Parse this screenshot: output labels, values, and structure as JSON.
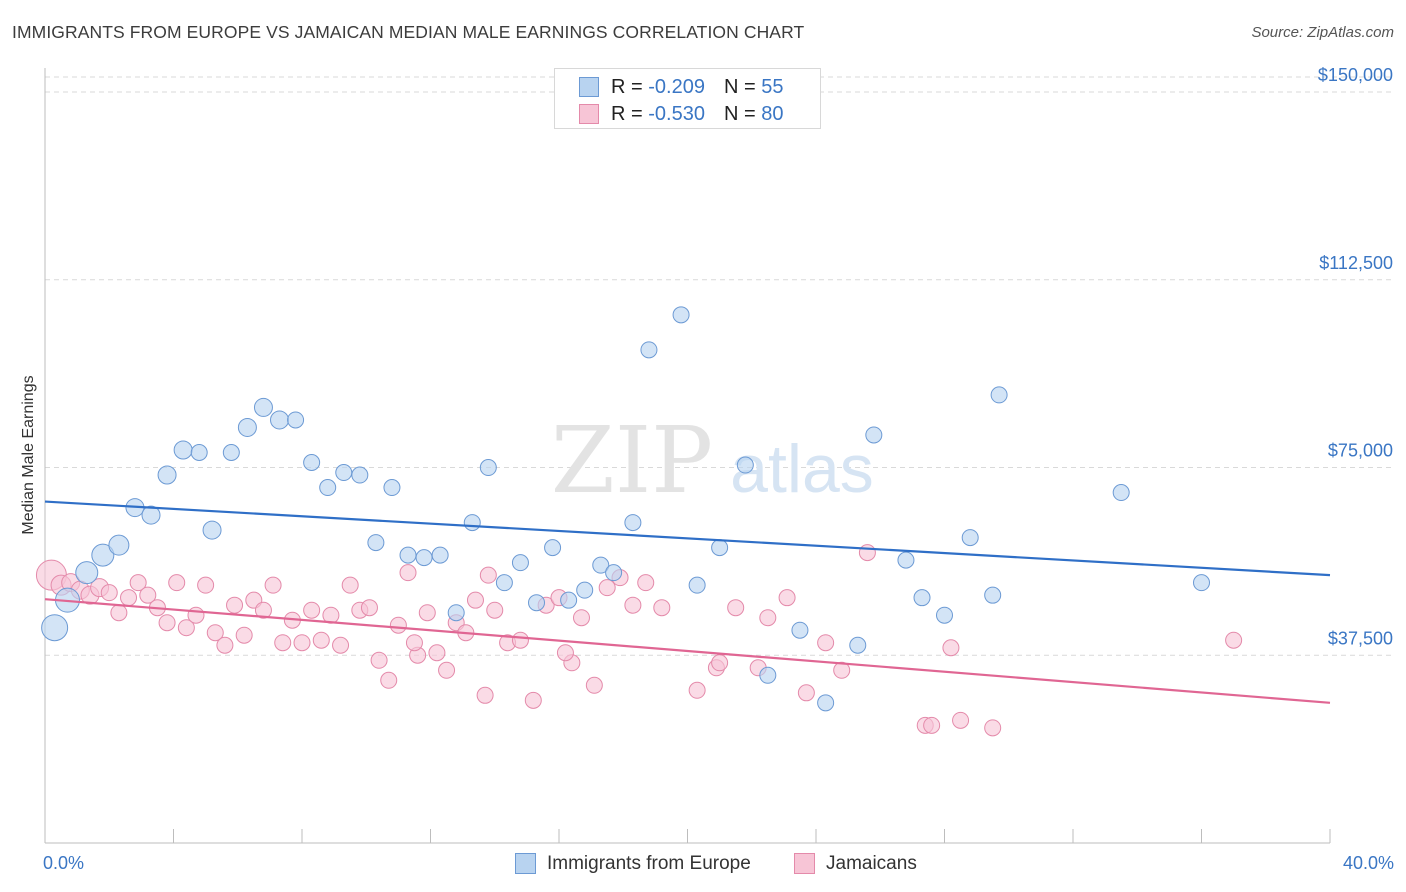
{
  "header": {
    "title": "IMMIGRANTS FROM EUROPE VS JAMAICAN MEDIAN MALE EARNINGS CORRELATION CHART",
    "source": "Source: ZipAtlas.com"
  },
  "watermark": {
    "zip": "ZIP",
    "atlas": "atlas"
  },
  "legend": {
    "rows": [
      {
        "r_label": "R = ",
        "r_value": "-0.209",
        "n_label": "N = ",
        "n_value": "55"
      },
      {
        "r_label": "R = ",
        "r_value": "-0.530",
        "n_label": "N = ",
        "n_value": "80"
      }
    ]
  },
  "bottom_legend": {
    "series1": "Immigrants from Europe",
    "series2": "Jamaicans"
  },
  "colors": {
    "series1_fill": "#b8d3f0",
    "series1_stroke": "#6c9ad4",
    "series1_line": "#2f6fc7",
    "series2_fill": "#f7c5d6",
    "series2_stroke": "#e48aaa",
    "series2_line": "#e06693",
    "axis_text": "#3a76c4",
    "grid": "#d9d9d9"
  },
  "chart_data": {
    "type": "scatter",
    "title": "IMMIGRANTS FROM EUROPE VS JAMAICAN MEDIAN MALE EARNINGS CORRELATION CHART",
    "xlabel": "",
    "ylabel": "Median Male Earnings",
    "xlim": [
      0,
      40
    ],
    "ylim": [
      0,
      154000
    ],
    "x_tick_labels": [
      "0.0%",
      "40.0%"
    ],
    "y_ticks": [
      {
        "value": 37500,
        "label": "$37,500"
      },
      {
        "value": 75000,
        "label": "$75,000"
      },
      {
        "value": 112500,
        "label": "$112,500"
      },
      {
        "value": 150000,
        "label": "$150,000"
      }
    ],
    "grid": true,
    "series": [
      {
        "name": "Immigrants from Europe",
        "r": -0.209,
        "n": 55,
        "trend": {
          "x": [
            0,
            40
          ],
          "y": [
            68200,
            53500
          ]
        },
        "points": [
          [
            0.3,
            43000,
            13
          ],
          [
            0.7,
            48500,
            12
          ],
          [
            1.3,
            54000,
            11
          ],
          [
            1.8,
            57500,
            11
          ],
          [
            2.3,
            59500,
            10
          ],
          [
            2.8,
            67000,
            9
          ],
          [
            3.3,
            65500,
            9
          ],
          [
            3.8,
            73500,
            9
          ],
          [
            4.3,
            78500,
            9
          ],
          [
            4.8,
            78000,
            8
          ],
          [
            5.2,
            62500,
            9
          ],
          [
            5.8,
            78000,
            8
          ],
          [
            6.3,
            83000,
            9
          ],
          [
            6.8,
            87000,
            9
          ],
          [
            7.3,
            84500,
            9
          ],
          [
            7.8,
            84500,
            8
          ],
          [
            8.3,
            76000,
            8
          ],
          [
            8.8,
            71000,
            8
          ],
          [
            9.3,
            74000,
            8
          ],
          [
            9.8,
            73500,
            8
          ],
          [
            10.3,
            60000,
            8
          ],
          [
            10.8,
            71000,
            8
          ],
          [
            11.3,
            57500,
            8
          ],
          [
            11.8,
            57000,
            8
          ],
          [
            12.3,
            57500,
            8
          ],
          [
            12.8,
            46000,
            8
          ],
          [
            13.3,
            64000,
            8
          ],
          [
            13.8,
            75000,
            8
          ],
          [
            14.3,
            52000,
            8
          ],
          [
            14.8,
            56000,
            8
          ],
          [
            15.3,
            48000,
            8
          ],
          [
            15.8,
            59000,
            8
          ],
          [
            16.3,
            48500,
            8
          ],
          [
            16.8,
            50500,
            8
          ],
          [
            17.3,
            55500,
            8
          ],
          [
            17.7,
            54000,
            8
          ],
          [
            18.3,
            64000,
            8
          ],
          [
            18.8,
            98500,
            8
          ],
          [
            19.8,
            105500,
            8
          ],
          [
            20.3,
            51500,
            8
          ],
          [
            21.0,
            59000,
            8
          ],
          [
            21.8,
            75500,
            8
          ],
          [
            22.5,
            33500,
            8
          ],
          [
            23.5,
            42500,
            8
          ],
          [
            24.3,
            28000,
            8
          ],
          [
            25.3,
            39500,
            8
          ],
          [
            25.8,
            81500,
            8
          ],
          [
            26.8,
            56500,
            8
          ],
          [
            27.3,
            49000,
            8
          ],
          [
            28.0,
            45500,
            8
          ],
          [
            28.8,
            61000,
            8
          ],
          [
            29.5,
            49500,
            8
          ],
          [
            29.7,
            89500,
            8
          ],
          [
            33.5,
            70000,
            8
          ],
          [
            36.0,
            52000,
            8
          ]
        ]
      },
      {
        "name": "Jamaicans",
        "r": -0.53,
        "n": 80,
        "trend": {
          "x": [
            0,
            40
          ],
          "y": [
            48700,
            28000
          ]
        },
        "points": [
          [
            0.2,
            53500,
            15
          ],
          [
            0.5,
            51500,
            10
          ],
          [
            0.8,
            52000,
            9
          ],
          [
            1.1,
            50500,
            9
          ],
          [
            1.4,
            49500,
            9
          ],
          [
            1.7,
            51000,
            9
          ],
          [
            2.0,
            50000,
            8
          ],
          [
            2.3,
            46000,
            8
          ],
          [
            2.6,
            49000,
            8
          ],
          [
            2.9,
            52000,
            8
          ],
          [
            3.2,
            49500,
            8
          ],
          [
            3.5,
            47000,
            8
          ],
          [
            3.8,
            44000,
            8
          ],
          [
            4.1,
            52000,
            8
          ],
          [
            4.4,
            43000,
            8
          ],
          [
            4.7,
            45500,
            8
          ],
          [
            5.0,
            51500,
            8
          ],
          [
            5.3,
            42000,
            8
          ],
          [
            5.6,
            39500,
            8
          ],
          [
            5.9,
            47500,
            8
          ],
          [
            6.2,
            41500,
            8
          ],
          [
            6.5,
            48500,
            8
          ],
          [
            6.8,
            46500,
            8
          ],
          [
            7.1,
            51500,
            8
          ],
          [
            7.4,
            40000,
            8
          ],
          [
            7.7,
            44500,
            8
          ],
          [
            8.0,
            40000,
            8
          ],
          [
            8.3,
            46500,
            8
          ],
          [
            8.6,
            40500,
            8
          ],
          [
            8.9,
            45500,
            8
          ],
          [
            9.2,
            39500,
            8
          ],
          [
            9.5,
            51500,
            8
          ],
          [
            9.8,
            46500,
            8
          ],
          [
            10.1,
            47000,
            8
          ],
          [
            10.4,
            36500,
            8
          ],
          [
            10.7,
            32500,
            8
          ],
          [
            11.0,
            43500,
            8
          ],
          [
            11.3,
            54000,
            8
          ],
          [
            11.6,
            37500,
            8
          ],
          [
            11.9,
            46000,
            8
          ],
          [
            12.2,
            38000,
            8
          ],
          [
            12.5,
            34500,
            8
          ],
          [
            12.8,
            44000,
            8
          ],
          [
            13.1,
            42000,
            8
          ],
          [
            13.4,
            48500,
            8
          ],
          [
            13.7,
            29500,
            8
          ],
          [
            14.0,
            46500,
            8
          ],
          [
            14.4,
            40000,
            8
          ],
          [
            14.8,
            40500,
            8
          ],
          [
            15.2,
            28500,
            8
          ],
          [
            15.6,
            47500,
            8
          ],
          [
            16.0,
            49000,
            8
          ],
          [
            16.4,
            36000,
            8
          ],
          [
            16.7,
            45000,
            8
          ],
          [
            17.1,
            31500,
            8
          ],
          [
            17.5,
            51000,
            8
          ],
          [
            17.9,
            53000,
            8
          ],
          [
            18.3,
            47500,
            8
          ],
          [
            18.7,
            52000,
            8
          ],
          [
            20.3,
            30500,
            8
          ],
          [
            20.9,
            35000,
            8
          ],
          [
            21.5,
            47000,
            8
          ],
          [
            22.2,
            35000,
            8
          ],
          [
            22.5,
            45000,
            8
          ],
          [
            23.1,
            49000,
            8
          ],
          [
            23.7,
            30000,
            8
          ],
          [
            24.3,
            40000,
            8
          ],
          [
            24.8,
            34500,
            8
          ],
          [
            25.6,
            58000,
            8
          ],
          [
            27.4,
            23500,
            8
          ],
          [
            27.6,
            23500,
            8
          ],
          [
            28.2,
            39000,
            8
          ],
          [
            28.5,
            24500,
            8
          ],
          [
            29.5,
            23000,
            8
          ],
          [
            37.0,
            40500,
            8
          ],
          [
            11.5,
            40000,
            8
          ],
          [
            13.8,
            53500,
            8
          ],
          [
            16.2,
            38000,
            8
          ],
          [
            19.2,
            47000,
            8
          ],
          [
            21.0,
            36000,
            8
          ]
        ]
      }
    ]
  }
}
